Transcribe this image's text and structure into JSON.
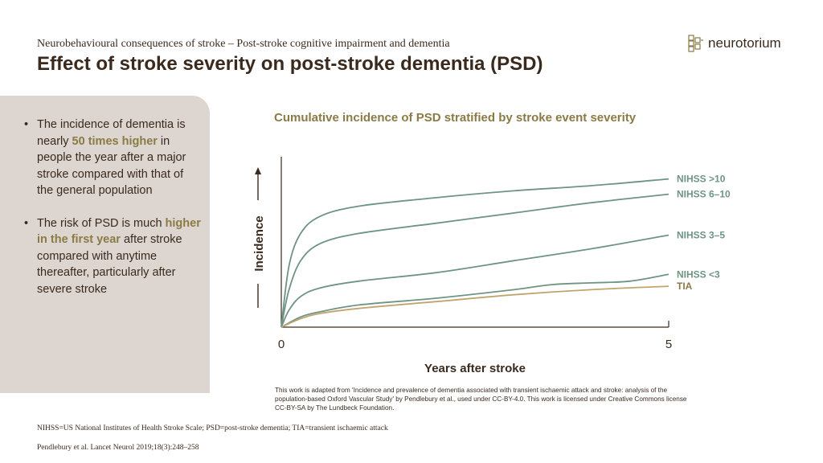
{
  "header": {
    "supertitle": "Neurobehavioural  consequences of stroke – Post-stroke cognitive impairment  and dementia",
    "title": "Effect of stroke severity on post-stroke dementia (PSD)",
    "logo_text": "neurotorium"
  },
  "sidebar": {
    "bullet1": {
      "a": "The incidence of dementia  is nearly ",
      "b": "50 times higher",
      "c": " in people the year after a major stroke compared  with that of the general population"
    },
    "bullet2": {
      "a": "The risk of PSD is much ",
      "b": "higher in the first year",
      "c": " after stroke compared with anytime thereafter, particularly after severe stroke"
    }
  },
  "chart_title": "Cumulative incidence of PSD stratified by stroke event severity",
  "chart_data": {
    "type": "line",
    "title": "Cumulative incidence of PSD stratified by stroke event severity",
    "xlabel": "Years after stroke",
    "ylabel": "Incidence",
    "xlim": [
      0,
      5
    ],
    "ylim": [
      0,
      1
    ],
    "xticks": [
      "0",
      "5"
    ],
    "grid": false,
    "series": [
      {
        "name": "NIHSS >10",
        "color": "#6e9484",
        "x": [
          0,
          0.1,
          0.25,
          0.5,
          1,
          2,
          3,
          4,
          5
        ],
        "y": [
          0,
          0.36,
          0.55,
          0.65,
          0.71,
          0.76,
          0.8,
          0.83,
          0.87
        ]
      },
      {
        "name": "NIHSS 6–10",
        "color": "#6e9484",
        "x": [
          0,
          0.1,
          0.25,
          0.5,
          1,
          2,
          3,
          4,
          5
        ],
        "y": [
          0,
          0.22,
          0.39,
          0.49,
          0.55,
          0.61,
          0.67,
          0.73,
          0.78
        ]
      },
      {
        "name": "NIHSS 3–5",
        "color": "#6e9484",
        "x": [
          0,
          0.1,
          0.25,
          0.5,
          1,
          2,
          3,
          4,
          5
        ],
        "y": [
          0,
          0.1,
          0.18,
          0.23,
          0.27,
          0.32,
          0.39,
          0.46,
          0.54
        ]
      },
      {
        "name": "NIHSS <3",
        "color": "#6e9484",
        "x": [
          0,
          0.25,
          0.5,
          1,
          2,
          3,
          3.5,
          4,
          4.5,
          5
        ],
        "y": [
          0,
          0.06,
          0.09,
          0.13,
          0.17,
          0.22,
          0.25,
          0.26,
          0.27,
          0.31
        ]
      },
      {
        "name": "TIA",
        "color": "#c2a46e",
        "x": [
          0,
          0.25,
          0.5,
          1,
          2,
          3,
          4,
          5
        ],
        "y": [
          0,
          0.05,
          0.08,
          0.11,
          0.15,
          0.19,
          0.22,
          0.24
        ]
      }
    ]
  },
  "credit": "This work is adapted from 'Incidence and prevalence of dementia associated with transient ischaemic attack and stroke: analysis of the population-based Oxford Vascular Study' by Pendlebury et al., used under CC-BY-4.0. This work is licensed under Creative Commons license CC-BY-SA by The Lundbeck Foundation.",
  "footnote_abbrev": "NIHSS=US National Institutes of Health Stroke Scale; PSD=post-stroke dementia; TIA=transient ischaemic attack",
  "footnote_ref": "Pendlebury et al. Lancet Neurol 2019;18(3):248–258"
}
